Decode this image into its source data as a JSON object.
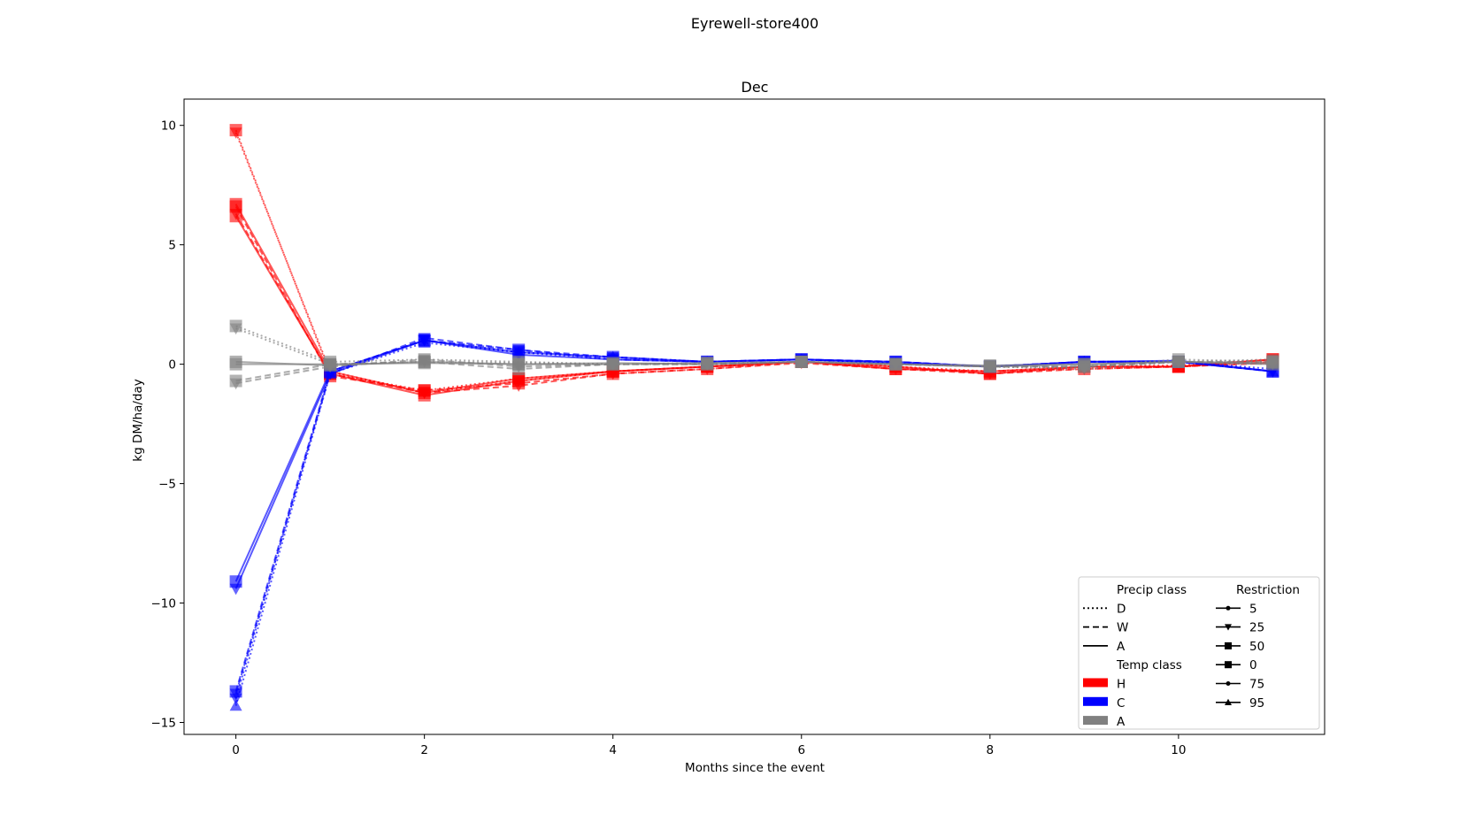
{
  "figure_title": "Eyrewell-store400",
  "chart_data": {
    "type": "line",
    "title": "Dec",
    "xlabel": "Months since the event",
    "ylabel": "kg DM/ha/day",
    "xlim": [
      -0.55,
      11.55
    ],
    "ylim": [
      -15.5,
      11.1
    ],
    "x_ticks": [
      0,
      2,
      4,
      6,
      8,
      10
    ],
    "x_tick_labels": [
      "0",
      "2",
      "4",
      "6",
      "8",
      "10"
    ],
    "y_ticks": [
      -15,
      -10,
      -5,
      0,
      5,
      10
    ],
    "y_tick_labels": [
      "−15",
      "−10",
      "−5",
      "0",
      "5",
      "10"
    ],
    "grid": false,
    "legend_placement": "lower-right",
    "x": [
      0,
      1,
      2,
      3,
      4,
      5,
      6,
      7,
      8,
      9,
      10,
      11
    ],
    "temp_colors": {
      "H": "#ff0000",
      "C": "#0000ff",
      "A": "#808080"
    },
    "series": [
      {
        "temp": "H",
        "precip": "D",
        "restriction": "25",
        "values": [
          9.7,
          -0.3,
          -1.2,
          -0.7,
          -0.3,
          -0.1,
          0.1,
          -0.1,
          -0.3,
          -0.1,
          -0.05,
          0.2
        ]
      },
      {
        "temp": "H",
        "precip": "D",
        "restriction": "50",
        "values": [
          9.8,
          -0.4,
          -1.1,
          -0.6,
          -0.3,
          -0.1,
          0.1,
          -0.1,
          -0.4,
          -0.1,
          -0.1,
          0.1
        ]
      },
      {
        "temp": "H",
        "precip": "W",
        "restriction": "25",
        "values": [
          6.3,
          -0.4,
          -1.2,
          -0.9,
          -0.4,
          -0.2,
          0.05,
          -0.2,
          -0.4,
          -0.2,
          -0.1,
          0.05
        ]
      },
      {
        "temp": "H",
        "precip": "W",
        "restriction": "50",
        "values": [
          6.6,
          -0.5,
          -1.1,
          -0.8,
          -0.4,
          -0.2,
          0.1,
          -0.2,
          -0.3,
          -0.2,
          -0.1,
          0.1
        ]
      },
      {
        "temp": "H",
        "precip": "A",
        "restriction": "0",
        "values": [
          6.2,
          -0.4,
          -1.3,
          -0.7,
          -0.3,
          -0.1,
          0.1,
          -0.1,
          -0.4,
          -0.1,
          -0.1,
          0.2
        ]
      },
      {
        "temp": "H",
        "precip": "A",
        "restriction": "50",
        "values": [
          6.7,
          -0.3,
          -1.2,
          -0.6,
          -0.3,
          -0.1,
          0.1,
          -0.2,
          -0.3,
          -0.1,
          -0.1,
          0.2
        ]
      },
      {
        "temp": "C",
        "precip": "D",
        "restriction": "25",
        "values": [
          -14.0,
          -0.3,
          1.0,
          0.5,
          0.2,
          0.1,
          0.2,
          0.05,
          -0.1,
          0.1,
          0.1,
          -0.2
        ]
      },
      {
        "temp": "C",
        "precip": "D",
        "restriction": "95",
        "values": [
          -14.3,
          -0.4,
          0.9,
          0.5,
          0.3,
          0.1,
          0.2,
          0.05,
          -0.1,
          0.1,
          0.1,
          -0.3
        ]
      },
      {
        "temp": "C",
        "precip": "W",
        "restriction": "25",
        "values": [
          -13.8,
          -0.4,
          1.1,
          0.6,
          0.3,
          0.1,
          0.2,
          0.1,
          -0.1,
          0.1,
          0.1,
          -0.3
        ]
      },
      {
        "temp": "C",
        "precip": "W",
        "restriction": "50",
        "values": [
          -13.7,
          -0.3,
          1.0,
          0.6,
          0.2,
          0.1,
          0.2,
          0.1,
          -0.1,
          0.1,
          0.1,
          -0.3
        ]
      },
      {
        "temp": "C",
        "precip": "A",
        "restriction": "25",
        "values": [
          -9.4,
          -0.4,
          1.0,
          0.4,
          0.2,
          0.1,
          0.2,
          0.05,
          -0.1,
          0.1,
          0.15,
          -0.3
        ]
      },
      {
        "temp": "C",
        "precip": "A",
        "restriction": "50",
        "values": [
          -9.1,
          -0.3,
          1.0,
          0.5,
          0.3,
          0.1,
          0.2,
          0.1,
          -0.1,
          0.1,
          0.1,
          -0.3
        ]
      },
      {
        "temp": "A",
        "precip": "D",
        "restriction": "50",
        "values": [
          1.6,
          0.1,
          0.2,
          0.1,
          0.0,
          0.05,
          0.1,
          0.0,
          -0.1,
          -0.1,
          0.2,
          0.1
        ]
      },
      {
        "temp": "A",
        "precip": "D",
        "restriction": "25",
        "values": [
          1.5,
          0.0,
          0.1,
          0.05,
          0.0,
          0.0,
          0.1,
          0.0,
          -0.1,
          -0.2,
          0.1,
          0.2
        ]
      },
      {
        "temp": "A",
        "precip": "W",
        "restriction": "25",
        "values": [
          -0.8,
          -0.1,
          0.2,
          -0.1,
          0.0,
          0.0,
          0.1,
          0.0,
          -0.1,
          -0.1,
          0.1,
          0.0
        ]
      },
      {
        "temp": "A",
        "precip": "W",
        "restriction": "50",
        "values": [
          -0.7,
          0.0,
          0.1,
          -0.2,
          0.0,
          0.0,
          0.1,
          0.0,
          -0.1,
          -0.1,
          0.1,
          0.1
        ]
      },
      {
        "temp": "A",
        "precip": "A",
        "restriction": "0",
        "values": [
          0.1,
          -0.05,
          0.1,
          0.0,
          0.0,
          0.05,
          0.1,
          0.0,
          -0.1,
          0.0,
          0.1,
          0.0
        ]
      },
      {
        "temp": "A",
        "precip": "A",
        "restriction": "50",
        "values": [
          0.0,
          0.0,
          0.05,
          0.0,
          0.05,
          0.0,
          0.1,
          0.0,
          -0.05,
          0.0,
          0.1,
          0.05
        ]
      }
    ]
  },
  "legend": {
    "precip_header": "Precip class",
    "precip_items": [
      {
        "label": "D",
        "style": "dotted"
      },
      {
        "label": "W",
        "style": "dashed"
      },
      {
        "label": "A",
        "style": "solid"
      }
    ],
    "temp_header": "Temp class",
    "temp_items": [
      {
        "label": "H",
        "color": "#ff0000"
      },
      {
        "label": "C",
        "color": "#0000ff"
      },
      {
        "label": "A",
        "color": "#808080"
      }
    ],
    "restriction_header": "Restriction",
    "restriction_items": [
      {
        "label": "5",
        "marker": "point"
      },
      {
        "label": "25",
        "marker": "triangle-down"
      },
      {
        "label": "50",
        "marker": "square"
      },
      {
        "label": "0",
        "marker": "square"
      },
      {
        "label": "75",
        "marker": "point"
      },
      {
        "label": "95",
        "marker": "triangle-up"
      }
    ]
  }
}
